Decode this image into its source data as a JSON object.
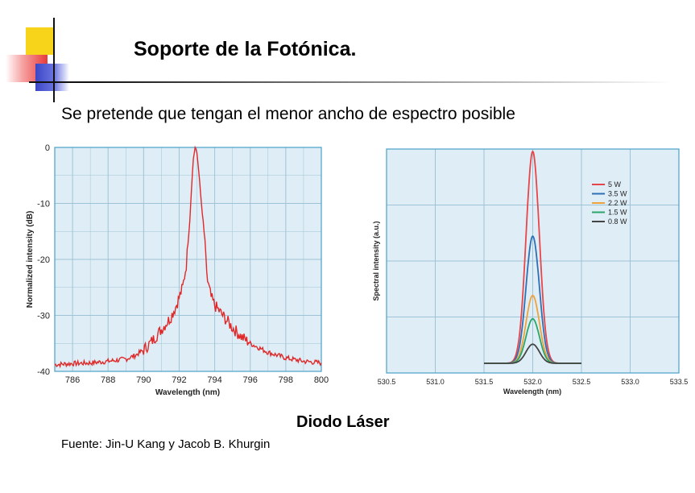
{
  "slide": {
    "title": "Soporte de la Fotónica.",
    "subtitle": "Se pretende que tengan el menor ancho de espectro posible",
    "caption": "Diodo Láser",
    "source": "Fuente: Jin-U Kang y Jacob B. Khurgin"
  },
  "colors": {
    "plot_bg": "#dfeef6",
    "grid": "#9fc3d6",
    "frame": "#4aa0c8",
    "red_trace": "#e02828"
  },
  "chart_data": [
    {
      "type": "line",
      "xlabel": "Wavelength (nm)",
      "ylabel": "Normalized intensity (dB)",
      "xlim": [
        785,
        800
      ],
      "ylim": [
        -40,
        0
      ],
      "x_ticks": [
        "786",
        "788",
        "790",
        "792",
        "794",
        "796",
        "798",
        "800"
      ],
      "y_ticks": [
        "0",
        "-10",
        "-20",
        "-30",
        "-40"
      ],
      "grid": true,
      "series": [
        {
          "color": "#e02828",
          "points": [
            [
              785,
              -38.8
            ],
            [
              786,
              -38.6
            ],
            [
              787,
              -38.5
            ],
            [
              788,
              -38.2
            ],
            [
              789,
              -37.8
            ],
            [
              789.5,
              -37.2
            ],
            [
              790,
              -36.2
            ],
            [
              790.5,
              -34.5
            ],
            [
              791,
              -32.5
            ],
            [
              791.5,
              -30.5
            ],
            [
              791.8,
              -28.5
            ],
            [
              792,
              -26.8
            ],
            [
              792.2,
              -25
            ],
            [
              792.4,
              -21
            ],
            [
              792.5,
              -17
            ],
            [
              792.6,
              -13
            ],
            [
              792.7,
              -7
            ],
            [
              792.8,
              -2
            ],
            [
              792.9,
              0
            ],
            [
              793.0,
              -1
            ],
            [
              793.1,
              -4
            ],
            [
              793.2,
              -8
            ],
            [
              793.3,
              -12
            ],
            [
              793.4,
              -15
            ],
            [
              793.5,
              -20
            ],
            [
              793.6,
              -24
            ],
            [
              793.8,
              -26.8
            ],
            [
              794,
              -28.2
            ],
            [
              794.5,
              -30.2
            ],
            [
              795,
              -32.2
            ],
            [
              795.5,
              -33.8
            ],
            [
              796,
              -35
            ],
            [
              797,
              -36.6
            ],
            [
              798,
              -37.6
            ],
            [
              799,
              -38.2
            ],
            [
              800,
              -38.5
            ]
          ]
        }
      ]
    },
    {
      "type": "line",
      "xlabel": "Wavelength (nm)",
      "ylabel": "Spectral intensity (a.u.)",
      "xlim": [
        530.5,
        533.5
      ],
      "x_ticks": [
        "530.5",
        "531.0",
        "531.5",
        "532.0",
        "532.5",
        "533.0",
        "533.5"
      ],
      "legend_position": "top-right",
      "grid": true,
      "series": [
        {
          "name": "5 W",
          "color": "#e8454a",
          "center": 532.0,
          "fwhm": 0.16,
          "peak": 1.0
        },
        {
          "name": "3.5 W",
          "color": "#2f6fb5",
          "center": 532.0,
          "fwhm": 0.16,
          "peak": 0.6
        },
        {
          "name": "2.2 W",
          "color": "#f0a23a",
          "center": 532.0,
          "fwhm": 0.16,
          "peak": 0.32
        },
        {
          "name": "1.5 W",
          "color": "#2aa66a",
          "center": 532.0,
          "fwhm": 0.16,
          "peak": 0.21
        },
        {
          "name": "0.8 W",
          "color": "#444444",
          "center": 532.0,
          "fwhm": 0.16,
          "peak": 0.09
        }
      ]
    }
  ]
}
